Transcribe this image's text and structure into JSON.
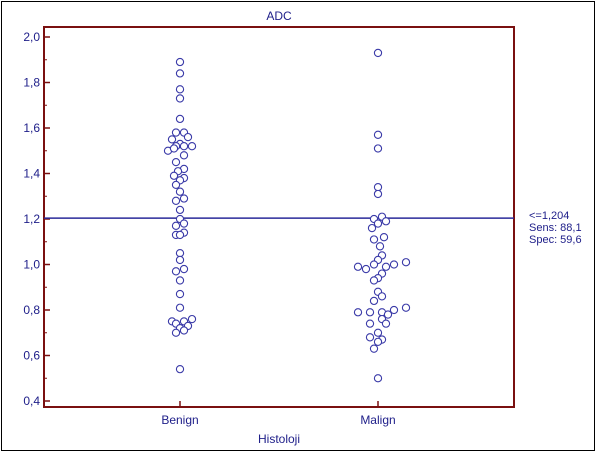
{
  "colors": {
    "axis_frame": "#7a1010",
    "text": "#20208a",
    "point_stroke": "#3a3aa8",
    "cutoff_line": "#2a2a9a"
  },
  "chart_data": {
    "type": "scatter",
    "title": "ADC",
    "xlabel": "Histoloji",
    "ylabel": "",
    "categories": [
      "Benign",
      "Malign"
    ],
    "ylim": [
      0.4,
      2.0
    ],
    "yticks": [
      "0,4",
      "0,6",
      "0,8",
      "1,0",
      "1,2",
      "1,4",
      "1,6",
      "1,8",
      "2,0"
    ],
    "yticks_values": [
      0.4,
      0.6,
      0.8,
      1.0,
      1.2,
      1.4,
      1.6,
      1.8,
      2.0
    ],
    "grid": false,
    "cutoff": {
      "value": 1.204,
      "label_lines": [
        "<=1,204",
        "Sens: 88,1",
        "Spec: 59,6"
      ]
    },
    "series": [
      {
        "category": "Benign",
        "points": [
          {
            "y": 1.89,
            "dx": 0
          },
          {
            "y": 1.84,
            "dx": 0
          },
          {
            "y": 1.77,
            "dx": 0
          },
          {
            "y": 1.73,
            "dx": 0
          },
          {
            "y": 1.64,
            "dx": 0
          },
          {
            "y": 1.58,
            "dx": -4
          },
          {
            "y": 1.58,
            "dx": 4
          },
          {
            "y": 1.56,
            "dx": 8
          },
          {
            "y": 1.55,
            "dx": -8
          },
          {
            "y": 1.53,
            "dx": 0
          },
          {
            "y": 1.52,
            "dx": -4
          },
          {
            "y": 1.52,
            "dx": 4
          },
          {
            "y": 1.52,
            "dx": 12
          },
          {
            "y": 1.5,
            "dx": -12
          },
          {
            "y": 1.51,
            "dx": -6
          },
          {
            "y": 1.48,
            "dx": 4
          },
          {
            "y": 1.45,
            "dx": -4
          },
          {
            "y": 1.42,
            "dx": 4
          },
          {
            "y": 1.41,
            "dx": -2
          },
          {
            "y": 1.39,
            "dx": -6
          },
          {
            "y": 1.38,
            "dx": 4
          },
          {
            "y": 1.37,
            "dx": 0
          },
          {
            "y": 1.35,
            "dx": -4
          },
          {
            "y": 1.32,
            "dx": 0
          },
          {
            "y": 1.29,
            "dx": 4
          },
          {
            "y": 1.28,
            "dx": -4
          },
          {
            "y": 1.24,
            "dx": 0
          },
          {
            "y": 1.2,
            "dx": 0
          },
          {
            "y": 1.18,
            "dx": 4
          },
          {
            "y": 1.17,
            "dx": -4
          },
          {
            "y": 1.14,
            "dx": 4
          },
          {
            "y": 1.13,
            "dx": -4
          },
          {
            "y": 1.13,
            "dx": 0
          },
          {
            "y": 1.05,
            "dx": 0
          },
          {
            "y": 1.02,
            "dx": 0
          },
          {
            "y": 0.98,
            "dx": 4
          },
          {
            "y": 0.97,
            "dx": -4
          },
          {
            "y": 0.93,
            "dx": 0
          },
          {
            "y": 0.87,
            "dx": 0
          },
          {
            "y": 0.81,
            "dx": 0
          },
          {
            "y": 0.76,
            "dx": 12
          },
          {
            "y": 0.75,
            "dx": -8
          },
          {
            "y": 0.75,
            "dx": 4
          },
          {
            "y": 0.74,
            "dx": -4
          },
          {
            "y": 0.73,
            "dx": 8
          },
          {
            "y": 0.72,
            "dx": 0
          },
          {
            "y": 0.71,
            "dx": 4
          },
          {
            "y": 0.7,
            "dx": -4
          },
          {
            "y": 0.54,
            "dx": 0
          }
        ]
      },
      {
        "category": "Malign",
        "points": [
          {
            "y": 1.93,
            "dx": 0
          },
          {
            "y": 1.57,
            "dx": 0
          },
          {
            "y": 1.51,
            "dx": 0
          },
          {
            "y": 1.34,
            "dx": 0
          },
          {
            "y": 1.31,
            "dx": 0
          },
          {
            "y": 1.21,
            "dx": 4
          },
          {
            "y": 1.2,
            "dx": -4
          },
          {
            "y": 1.19,
            "dx": 8
          },
          {
            "y": 1.18,
            "dx": 0
          },
          {
            "y": 1.16,
            "dx": -6
          },
          {
            "y": 1.12,
            "dx": 6
          },
          {
            "y": 1.11,
            "dx": -4
          },
          {
            "y": 1.08,
            "dx": 2
          },
          {
            "y": 1.04,
            "dx": 4
          },
          {
            "y": 1.02,
            "dx": 0
          },
          {
            "y": 1.01,
            "dx": 28
          },
          {
            "y": 1.0,
            "dx": 16
          },
          {
            "y": 1.0,
            "dx": -4
          },
          {
            "y": 0.99,
            "dx": -20
          },
          {
            "y": 0.99,
            "dx": 8
          },
          {
            "y": 0.98,
            "dx": -12
          },
          {
            "y": 0.96,
            "dx": 4
          },
          {
            "y": 0.94,
            "dx": 0
          },
          {
            "y": 0.93,
            "dx": -4
          },
          {
            "y": 0.88,
            "dx": 0
          },
          {
            "y": 0.86,
            "dx": 4
          },
          {
            "y": 0.84,
            "dx": -4
          },
          {
            "y": 0.81,
            "dx": 28
          },
          {
            "y": 0.8,
            "dx": 16
          },
          {
            "y": 0.79,
            "dx": 4
          },
          {
            "y": 0.79,
            "dx": -8
          },
          {
            "y": 0.79,
            "dx": -20
          },
          {
            "y": 0.78,
            "dx": 10
          },
          {
            "y": 0.76,
            "dx": 4
          },
          {
            "y": 0.74,
            "dx": -8
          },
          {
            "y": 0.74,
            "dx": 8
          },
          {
            "y": 0.7,
            "dx": 0
          },
          {
            "y": 0.68,
            "dx": -8
          },
          {
            "y": 0.67,
            "dx": 4
          },
          {
            "y": 0.66,
            "dx": 0
          },
          {
            "y": 0.63,
            "dx": -4
          },
          {
            "y": 0.5,
            "dx": 0
          }
        ]
      }
    ]
  }
}
